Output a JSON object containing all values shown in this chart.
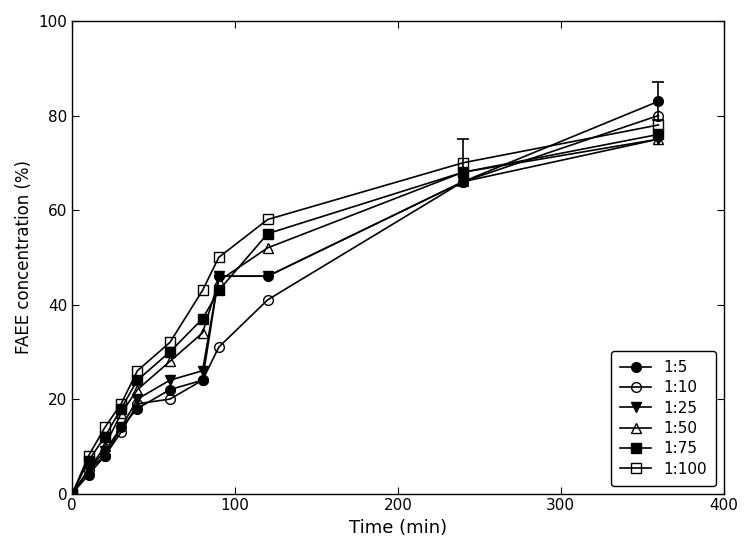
{
  "title": "",
  "xlabel": "Time (min)",
  "ylabel": "FAEE concentration (%)",
  "xlim": [
    0,
    400
  ],
  "ylim": [
    0,
    100
  ],
  "xticks": [
    0,
    100,
    200,
    300,
    400
  ],
  "yticks": [
    0,
    20,
    40,
    60,
    80,
    100
  ],
  "series": [
    {
      "label": "1:5",
      "marker": "o",
      "fillstyle": "full",
      "color": "black",
      "x": [
        0,
        10,
        20,
        30,
        40,
        60,
        80,
        90,
        120,
        240,
        360
      ],
      "y": [
        0,
        4,
        8,
        14,
        18,
        22,
        24,
        46,
        46,
        66,
        83
      ],
      "yerr": [
        0,
        0,
        0,
        0,
        0,
        0,
        0,
        0,
        0,
        0,
        4
      ]
    },
    {
      "label": "1:10",
      "marker": "o",
      "fillstyle": "none",
      "color": "black",
      "x": [
        0,
        10,
        20,
        30,
        40,
        60,
        80,
        90,
        120,
        240,
        360
      ],
      "y": [
        0,
        5,
        8,
        13,
        19,
        20,
        24,
        31,
        41,
        66,
        80
      ],
      "yerr": [
        0,
        0,
        0,
        0,
        0,
        0,
        0,
        0,
        0,
        0,
        0
      ]
    },
    {
      "label": "1:25",
      "marker": "v",
      "fillstyle": "full",
      "color": "black",
      "x": [
        0,
        10,
        20,
        30,
        40,
        60,
        80,
        90,
        120,
        240,
        360
      ],
      "y": [
        0,
        5,
        9,
        14,
        20,
        24,
        26,
        46,
        46,
        66,
        75
      ],
      "yerr": [
        0,
        0,
        0,
        0,
        0,
        0,
        0,
        0,
        0,
        0,
        0
      ]
    },
    {
      "label": "1:50",
      "marker": "^",
      "fillstyle": "none",
      "color": "black",
      "x": [
        0,
        10,
        20,
        30,
        40,
        60,
        80,
        90,
        120,
        240,
        360
      ],
      "y": [
        0,
        5,
        10,
        17,
        22,
        28,
        34,
        45,
        52,
        68,
        75
      ],
      "yerr": [
        0,
        0,
        0,
        0,
        0,
        0,
        0,
        0,
        0,
        0,
        0
      ]
    },
    {
      "label": "1:75",
      "marker": "s",
      "fillstyle": "full",
      "color": "black",
      "x": [
        0,
        10,
        20,
        30,
        40,
        60,
        80,
        90,
        120,
        240,
        360
      ],
      "y": [
        0,
        7,
        12,
        18,
        24,
        30,
        37,
        43,
        55,
        68,
        76
      ],
      "yerr": [
        0,
        0,
        0,
        0,
        0,
        0,
        0,
        0,
        0,
        0,
        0
      ]
    },
    {
      "label": "1:100",
      "marker": "s",
      "fillstyle": "none",
      "color": "black",
      "x": [
        0,
        10,
        20,
        30,
        40,
        60,
        80,
        90,
        120,
        240,
        360
      ],
      "y": [
        0,
        8,
        14,
        19,
        26,
        32,
        43,
        50,
        58,
        70,
        78
      ],
      "yerr": [
        0,
        0,
        0,
        0,
        0,
        0,
        0,
        0,
        0,
        5,
        0
      ]
    }
  ],
  "legend_loc": "lower right",
  "background_color": "#ffffff",
  "figsize": [
    7.53,
    5.52
  ],
  "dpi": 100
}
